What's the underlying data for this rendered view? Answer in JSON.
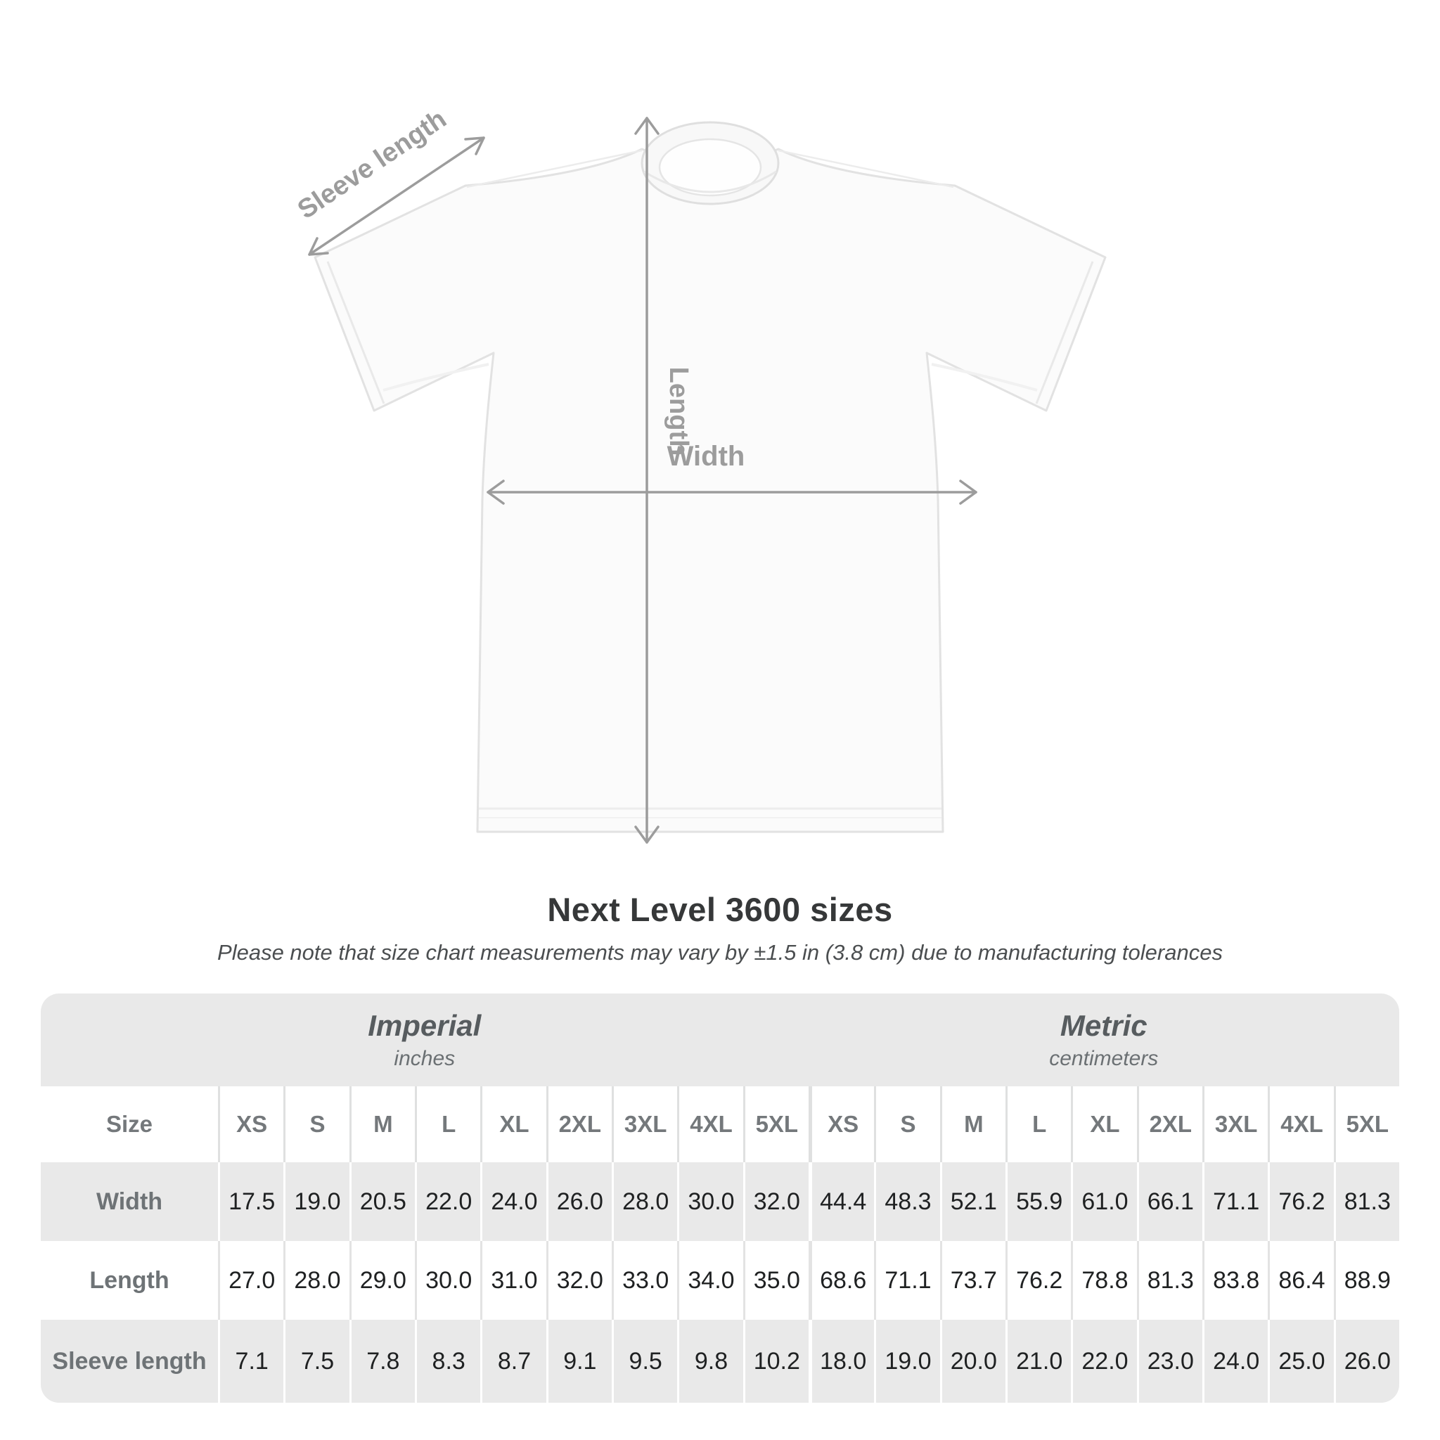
{
  "diagram": {
    "sleeve_length_label": "Sleeve length",
    "length_label": "Length",
    "width_label": "Width",
    "arrow_color": "#9c9c9c",
    "shirt_color": "#fbfbfb"
  },
  "chart_data": {
    "type": "table",
    "title": "Next Level 3600 sizes",
    "note": "Please note that size chart measurements may vary by ±1.5 in (3.8 cm) due to manufacturing tolerances",
    "size_label": "Size",
    "sizes": [
      "XS",
      "S",
      "M",
      "L",
      "XL",
      "2XL",
      "3XL",
      "4XL",
      "5XL"
    ],
    "unit_groups": [
      {
        "name": "Imperial",
        "unit": "inches"
      },
      {
        "name": "Metric",
        "unit": "centimeters"
      }
    ],
    "rows": [
      {
        "label": "Width",
        "imperial": [
          "17.5",
          "19.0",
          "20.5",
          "22.0",
          "24.0",
          "26.0",
          "28.0",
          "30.0",
          "32.0"
        ],
        "metric": [
          "44.4",
          "48.3",
          "52.1",
          "55.9",
          "61.0",
          "66.1",
          "71.1",
          "76.2",
          "81.3"
        ]
      },
      {
        "label": "Length",
        "imperial": [
          "27.0",
          "28.0",
          "29.0",
          "30.0",
          "31.0",
          "32.0",
          "33.0",
          "34.0",
          "35.0"
        ],
        "metric": [
          "68.6",
          "71.1",
          "73.7",
          "76.2",
          "78.8",
          "81.3",
          "83.8",
          "86.4",
          "88.9"
        ]
      },
      {
        "label": "Sleeve length",
        "imperial": [
          "7.1",
          "7.5",
          "7.8",
          "8.3",
          "8.7",
          "9.1",
          "9.5",
          "9.8",
          "10.2"
        ],
        "metric": [
          "18.0",
          "19.0",
          "20.0",
          "21.0",
          "22.0",
          "23.0",
          "24.0",
          "25.0",
          "26.0"
        ]
      }
    ],
    "layout": {
      "stripe_color": "#e9e9e9",
      "grid": "striped-rows",
      "legend_position": "none"
    }
  }
}
